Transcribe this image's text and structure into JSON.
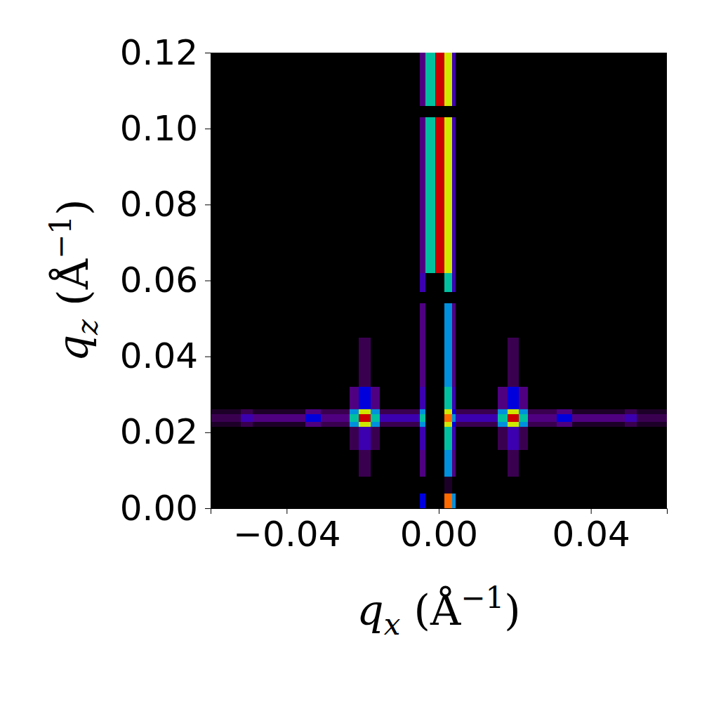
{
  "chart_data": {
    "type": "heatmap",
    "xlabel": "qx (Å−1)",
    "ylabel": "qz (Å−1)",
    "xlim": [
      -0.06,
      0.06
    ],
    "ylim": [
      0,
      0.12
    ],
    "xticks": [
      {
        "value": -0.04,
        "label": "−0.04"
      },
      {
        "value": 0,
        "label": "0.00"
      },
      {
        "value": 0.04,
        "label": "0.04"
      }
    ],
    "yticks": [
      {
        "value": 0,
        "label": "0.00"
      },
      {
        "value": 0.02,
        "label": "0.02"
      },
      {
        "value": 0.04,
        "label": "0.04"
      },
      {
        "value": 0.06,
        "label": "0.06"
      },
      {
        "value": 0.08,
        "label": "0.08"
      },
      {
        "value": 0.1,
        "label": "0.10"
      },
      {
        "value": 0.12,
        "label": "0.12"
      }
    ],
    "x_edges": [
      -0.06,
      -0.052,
      -0.049,
      -0.035,
      -0.031,
      -0.0235,
      -0.021,
      -0.018,
      -0.0155,
      -0.005,
      -0.0035,
      -0.001,
      0.0015,
      0.0035,
      0.0045,
      0.0155,
      0.018,
      0.021,
      0.0235,
      0.031,
      0.035,
      0.049,
      0.052,
      0.06
    ],
    "y_edges": [
      0,
      0.004,
      0.0085,
      0.0155,
      0.0215,
      0.0228,
      0.0248,
      0.0262,
      0.032,
      0.045,
      0.054,
      0.057,
      0.062,
      0.103,
      0.106,
      0.12
    ],
    "clim": [
      0,
      10
    ],
    "cells": [
      [
        0,
        0,
        0,
        0,
        0,
        0,
        0,
        0,
        0,
        5,
        0,
        0,
        9,
        6,
        0,
        0,
        0,
        0,
        0,
        0,
        0,
        0,
        0
      ],
      [
        0,
        0,
        0,
        0,
        0,
        0,
        0,
        0,
        0,
        0,
        0,
        0,
        1,
        0,
        0,
        0,
        0,
        0,
        0,
        0,
        0,
        0,
        0
      ],
      [
        0,
        0,
        0,
        0,
        0,
        0,
        2,
        0,
        0,
        3,
        0,
        0,
        6,
        3,
        0,
        0,
        2,
        0,
        0,
        0,
        0,
        0,
        0
      ],
      [
        0,
        0,
        0,
        0,
        0,
        2,
        4,
        2,
        0,
        4,
        0,
        0,
        7,
        4,
        0,
        2,
        4,
        2,
        0,
        0,
        0,
        0,
        0
      ],
      [
        1,
        2,
        1,
        3,
        2,
        6,
        8,
        6,
        2,
        6,
        0,
        0,
        8,
        5,
        2,
        6,
        8,
        6,
        2,
        3,
        1,
        2,
        1
      ],
      [
        2,
        4,
        3,
        5,
        3,
        7,
        10,
        7,
        4,
        7,
        0,
        0,
        9,
        6,
        4,
        7,
        10,
        7,
        3,
        5,
        3,
        4,
        2
      ],
      [
        1,
        2,
        1,
        3,
        2,
        6,
        8,
        6,
        2,
        6,
        0,
        0,
        8,
        5,
        2,
        6,
        8,
        6,
        2,
        3,
        1,
        2,
        1
      ],
      [
        0,
        0,
        0,
        0,
        0,
        3,
        5,
        3,
        0,
        4,
        0,
        0,
        7,
        4,
        0,
        3,
        5,
        3,
        0,
        0,
        0,
        0,
        0
      ],
      [
        0,
        0,
        0,
        0,
        0,
        0,
        2,
        0,
        0,
        3,
        0,
        0,
        6,
        3,
        0,
        0,
        2,
        0,
        0,
        0,
        0,
        0,
        0
      ],
      [
        0,
        0,
        0,
        0,
        0,
        0,
        0,
        0,
        0,
        3,
        0,
        0,
        6,
        3,
        0,
        0,
        0,
        0,
        0,
        0,
        0,
        0,
        0
      ],
      [
        0,
        0,
        0,
        0,
        0,
        0,
        0,
        0,
        0,
        0,
        0,
        0,
        0,
        0,
        0,
        0,
        0,
        0,
        0,
        0,
        0,
        0,
        0
      ],
      [
        0,
        0,
        0,
        0,
        0,
        0,
        0,
        0,
        0,
        4,
        0,
        0,
        7,
        4,
        0,
        0,
        0,
        0,
        0,
        0,
        0,
        0,
        0
      ],
      [
        0,
        0,
        0,
        0,
        0,
        0,
        0,
        0,
        0,
        3,
        7,
        10,
        8,
        4,
        0,
        0,
        0,
        0,
        0,
        0,
        0,
        0,
        0
      ],
      [
        0,
        0,
        0,
        0,
        0,
        0,
        0,
        0,
        0,
        0,
        0,
        0,
        0,
        0,
        0,
        0,
        0,
        0,
        0,
        0,
        0,
        0,
        0
      ],
      [
        0,
        0,
        0,
        0,
        0,
        0,
        0,
        0,
        0,
        3,
        7,
        10,
        8,
        4,
        0,
        0,
        0,
        0,
        0,
        0,
        0,
        0,
        0
      ]
    ]
  }
}
